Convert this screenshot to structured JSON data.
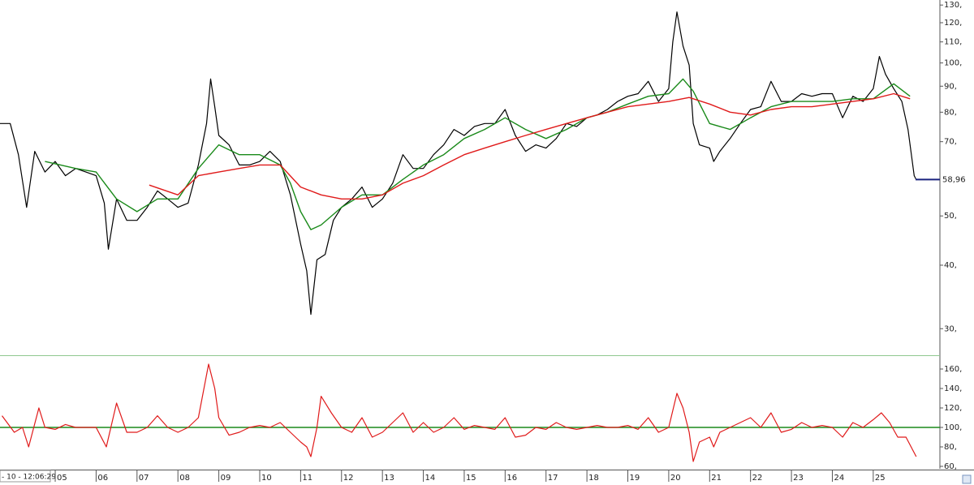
{
  "chart_data": [
    {
      "type": "line",
      "log_scale": true,
      "xlim": [
        3.65,
        26.63
      ],
      "ylim": [
        26.6,
        133
      ],
      "yticks": [
        {
          "value": 30,
          "label": "30,"
        },
        {
          "value": 40,
          "label": "40,"
        },
        {
          "value": 50,
          "label": "50,"
        },
        {
          "value": 70,
          "label": "70,"
        },
        {
          "value": 80,
          "label": "80,"
        },
        {
          "value": 90,
          "label": "90,"
        },
        {
          "value": 100,
          "label": "100,"
        },
        {
          "value": 110,
          "label": "110,"
        },
        {
          "value": 120,
          "label": "120,"
        },
        {
          "value": 130,
          "label": "130,"
        }
      ],
      "annotations": [
        {
          "value": 58.96,
          "label": "58,96",
          "color": "#1a237e"
        }
      ],
      "series": [
        {
          "color": "#000000",
          "x": [
            3.65,
            3.9,
            4.1,
            4.3,
            4.5,
            4.75,
            5.0,
            5.25,
            5.5,
            5.75,
            6.0,
            6.2,
            6.3,
            6.5,
            6.75,
            7.0,
            7.25,
            7.5,
            7.75,
            8.0,
            8.25,
            8.5,
            8.7,
            8.8,
            8.9,
            9.0,
            9.25,
            9.5,
            9.75,
            10.0,
            10.25,
            10.5,
            10.75,
            11.0,
            11.15,
            11.25,
            11.4,
            11.6,
            11.8,
            12.0,
            12.25,
            12.5,
            12.75,
            13.0,
            13.25,
            13.5,
            13.75,
            14.0,
            14.25,
            14.5,
            14.75,
            15.0,
            15.25,
            15.5,
            15.75,
            16.0,
            16.25,
            16.5,
            16.75,
            17.0,
            17.25,
            17.5,
            17.75,
            18.0,
            18.25,
            18.5,
            18.75,
            19.0,
            19.25,
            19.5,
            19.75,
            20.0,
            20.1,
            20.2,
            20.35,
            20.5,
            20.6,
            20.75,
            21.0,
            21.1,
            21.25,
            21.5,
            21.75,
            22.0,
            22.25,
            22.5,
            22.75,
            23.0,
            23.25,
            23.5,
            23.75,
            24.0,
            24.25,
            24.5,
            24.75,
            25.0,
            25.15,
            25.3,
            25.5,
            25.7,
            25.85,
            26.0,
            26.05
          ],
          "values": [
            76,
            76,
            66,
            52,
            67,
            61,
            64,
            60,
            62,
            61,
            60,
            53,
            43,
            54,
            49,
            49,
            52,
            56,
            54,
            52,
            53,
            63,
            76,
            93,
            82,
            72,
            69,
            63,
            63,
            64,
            67,
            64,
            55,
            44,
            39,
            32,
            41,
            42,
            49,
            52,
            54,
            57,
            52,
            54,
            58,
            66,
            62,
            62,
            66,
            69,
            74,
            72,
            75,
            76,
            76,
            81,
            72,
            67,
            69,
            68,
            71,
            76,
            75,
            78,
            79,
            81,
            84,
            86,
            87,
            92,
            84,
            89,
            110,
            126,
            108,
            99,
            76,
            69,
            68,
            64,
            67,
            71,
            76,
            81,
            82,
            92,
            84,
            84,
            87,
            86,
            87,
            87,
            78,
            86,
            84,
            89,
            103,
            95,
            89,
            84,
            74,
            60,
            58.96
          ]
        },
        {
          "color": "#1a8a1a",
          "x": [
            4.75,
            5.5,
            6.0,
            6.5,
            7.0,
            7.5,
            8.0,
            8.5,
            9.0,
            9.5,
            10.0,
            10.5,
            10.75,
            11.0,
            11.25,
            11.5,
            12.0,
            12.5,
            13.0,
            13.5,
            14.0,
            14.5,
            15.0,
            15.5,
            16.0,
            16.5,
            17.0,
            17.5,
            18.0,
            18.5,
            19.0,
            19.5,
            20.0,
            20.35,
            20.6,
            21.0,
            21.5,
            22.0,
            22.5,
            23.0,
            23.5,
            24.0,
            24.5,
            25.0,
            25.5,
            25.9
          ],
          "values": [
            64,
            62,
            61,
            54,
            51,
            54,
            54,
            62,
            69,
            66,
            66,
            63,
            58,
            51,
            47,
            48,
            52,
            55,
            55,
            59,
            63,
            66,
            71,
            74,
            78,
            74,
            71,
            74,
            78,
            80,
            83,
            86,
            87,
            93,
            88,
            76,
            74,
            78,
            82,
            84,
            84,
            84,
            85,
            85,
            91,
            86
          ]
        },
        {
          "color": "#e01a1a",
          "x": [
            7.3,
            8.0,
            8.5,
            9.0,
            9.5,
            10.0,
            10.5,
            11.0,
            11.5,
            12.0,
            12.5,
            13.0,
            13.5,
            14.0,
            14.5,
            15.0,
            15.5,
            16.0,
            16.5,
            17.0,
            17.5,
            18.0,
            18.5,
            19.0,
            19.5,
            20.0,
            20.5,
            21.0,
            21.5,
            22.0,
            22.5,
            23.0,
            23.5,
            24.0,
            24.5,
            25.0,
            25.5,
            25.9
          ],
          "values": [
            57.5,
            55,
            60,
            61,
            62,
            63,
            63,
            57,
            55,
            54,
            54,
            55,
            58,
            60,
            63,
            66,
            68,
            70,
            72,
            74,
            76,
            78,
            80,
            82,
            83,
            84,
            85.5,
            83,
            80,
            79,
            81,
            82,
            82,
            83,
            84,
            85,
            87,
            85
          ]
        }
      ]
    },
    {
      "type": "line",
      "xlim": [
        3.65,
        26.63
      ],
      "ylim": [
        57.5,
        172.5
      ],
      "yticks": [
        {
          "value": 60,
          "label": "60,"
        },
        {
          "value": 80,
          "label": "80,"
        },
        {
          "value": 100,
          "label": "100,"
        },
        {
          "value": 120,
          "label": "120,"
        },
        {
          "value": 140,
          "label": "140,"
        },
        {
          "value": 160,
          "label": "160,"
        }
      ],
      "xticks": [
        {
          "value": 5,
          "label": "05"
        },
        {
          "value": 6,
          "label": "06"
        },
        {
          "value": 7,
          "label": "07"
        },
        {
          "value": 8,
          "label": "08"
        },
        {
          "value": 9,
          "label": "09"
        },
        10,
        11,
        12,
        13,
        14,
        15,
        16,
        17,
        18,
        19,
        20,
        21,
        22,
        23,
        24,
        25
      ],
      "reference": {
        "value": 100,
        "color": "#1a8a1a"
      },
      "series": [
        {
          "color": "#e01a1a",
          "x": [
            3.7,
            4.0,
            4.2,
            4.35,
            4.6,
            4.75,
            5.0,
            5.25,
            5.5,
            5.75,
            6.0,
            6.25,
            6.5,
            6.75,
            7.0,
            7.25,
            7.5,
            7.75,
            8.0,
            8.25,
            8.5,
            8.75,
            8.9,
            9.0,
            9.25,
            9.5,
            9.75,
            10.0,
            10.25,
            10.5,
            10.75,
            11.0,
            11.15,
            11.25,
            11.4,
            11.5,
            11.75,
            12.0,
            12.25,
            12.5,
            12.75,
            13.0,
            13.25,
            13.5,
            13.75,
            14.0,
            14.25,
            14.5,
            14.75,
            15.0,
            15.25,
            15.5,
            15.75,
            16.0,
            16.25,
            16.5,
            16.75,
            17.0,
            17.25,
            17.5,
            17.75,
            18.0,
            18.25,
            18.5,
            18.75,
            19.0,
            19.25,
            19.5,
            19.75,
            20.0,
            20.2,
            20.35,
            20.5,
            20.6,
            20.75,
            21.0,
            21.1,
            21.25,
            21.5,
            21.75,
            22.0,
            22.25,
            22.5,
            22.75,
            23.0,
            23.25,
            23.5,
            23.75,
            24.0,
            24.25,
            24.5,
            24.75,
            25.0,
            25.2,
            25.4,
            25.6,
            25.8,
            26.05
          ],
          "values": [
            112,
            95,
            100,
            80,
            120,
            100,
            98,
            103,
            100,
            100,
            100,
            80,
            125,
            95,
            95,
            100,
            112,
            100,
            95,
            100,
            110,
            165,
            140,
            110,
            92,
            95,
            100,
            102,
            100,
            105,
            95,
            85,
            80,
            70,
            100,
            132,
            115,
            100,
            95,
            110,
            90,
            95,
            105,
            115,
            95,
            105,
            95,
            100,
            110,
            98,
            102,
            100,
            98,
            110,
            90,
            92,
            100,
            98,
            105,
            100,
            98,
            100,
            102,
            100,
            100,
            102,
            98,
            110,
            95,
            100,
            135,
            120,
            95,
            65,
            85,
            90,
            80,
            95,
            100,
            105,
            110,
            100,
            115,
            95,
            98,
            105,
            100,
            102,
            100,
            90,
            105,
            100,
            108,
            115,
            105,
            90,
            90,
            70
          ]
        }
      ]
    }
  ],
  "status": "- 10 - 12:06:29"
}
